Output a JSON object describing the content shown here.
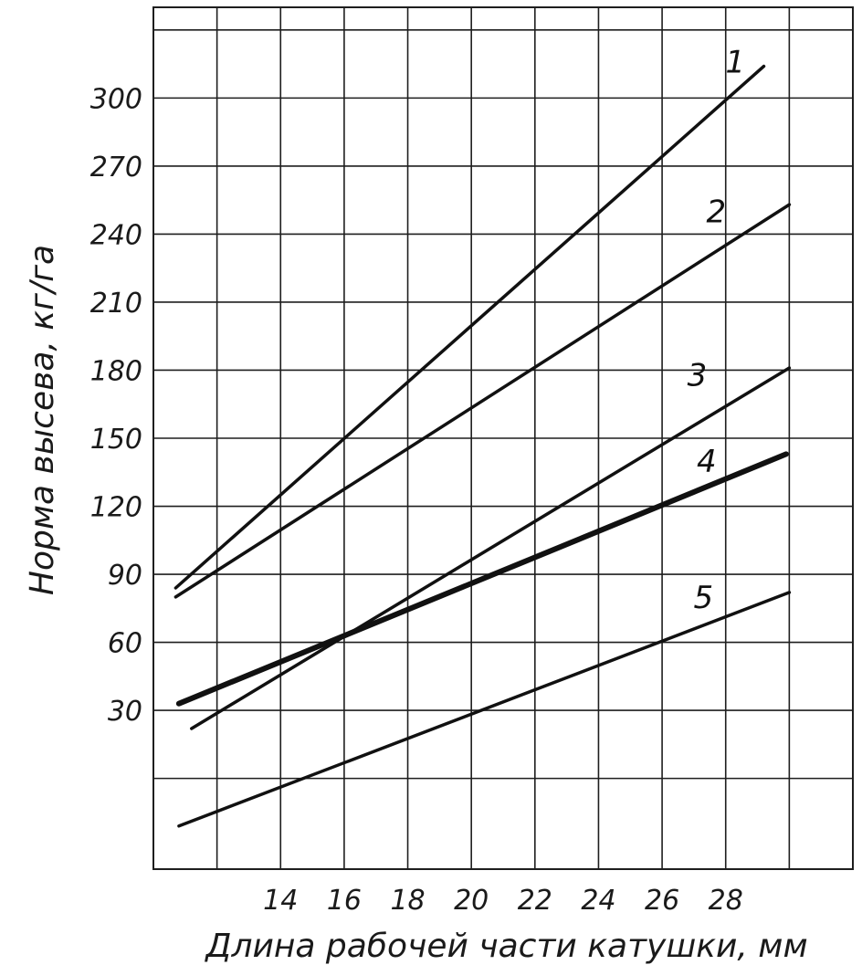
{
  "chart_data": {
    "type": "line",
    "title": "",
    "xlabel": "Длина рабочей части катушки, мм",
    "ylabel": "Норма высева, кг/га",
    "xlim": [
      10,
      32
    ],
    "ylim": [
      -40,
      340
    ],
    "x_ticks": [
      "14",
      "16",
      "18",
      "20",
      "22",
      "24",
      "26",
      "28"
    ],
    "y_ticks": [
      "30",
      "60",
      "90",
      "120",
      "150",
      "180",
      "210",
      "240",
      "270",
      "300"
    ],
    "grid": true,
    "series": [
      {
        "name": "1",
        "line_width": 3.5,
        "x": [
          10.7,
          29.2
        ],
        "y": [
          84,
          314
        ]
      },
      {
        "name": "2",
        "line_width": 3.5,
        "x": [
          10.7,
          30.0
        ],
        "y": [
          80,
          253
        ]
      },
      {
        "name": "3",
        "line_width": 3.5,
        "x": [
          11.2,
          30.0
        ],
        "y": [
          22,
          181
        ]
      },
      {
        "name": "4",
        "line_width": 6,
        "x": [
          10.8,
          29.9
        ],
        "y": [
          33,
          143
        ]
      },
      {
        "name": "5",
        "line_width": 3.5,
        "x": [
          10.8,
          30.0
        ],
        "y": [
          -21,
          82
        ]
      }
    ]
  }
}
